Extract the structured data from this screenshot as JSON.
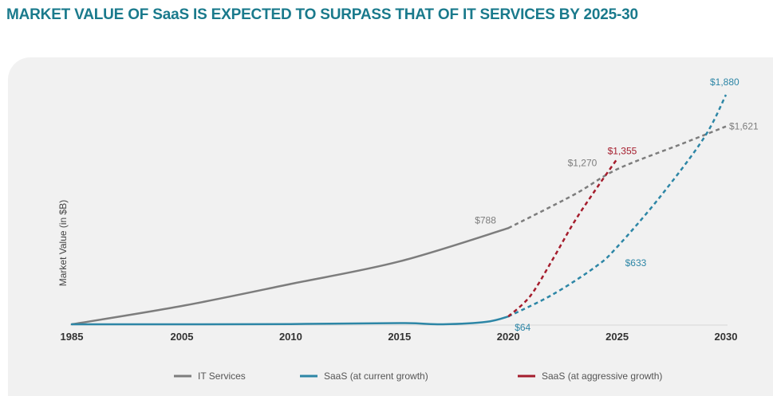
{
  "title": "MARKET VALUE OF SaaS IS EXPECTED TO SURPASS THAT OF IT SERVICES BY 2025-30",
  "colors": {
    "title": "#1a7a8c",
    "it_services": "#7d7d7d",
    "saas_current": "#2d86a6",
    "saas_aggressive": "#a51d2d",
    "panel": "#f1f1f1"
  },
  "chart_data": {
    "type": "line",
    "title": "MARKET VALUE OF SaaS IS EXPECTED TO SURPASS THAT OF IT SERVICES BY 2025-30",
    "xlabel": "",
    "ylabel": "Market Value (in $B)",
    "x_ticks": [
      "1985",
      "2005",
      "2010",
      "2015",
      "2020",
      "2025",
      "2030"
    ],
    "x_tick_values": [
      1985,
      2005,
      2010,
      2015,
      2020,
      2025,
      2030
    ],
    "ylim": [
      0,
      1950
    ],
    "grid": false,
    "legend_position": "bottom",
    "series": [
      {
        "name": "IT Services",
        "color": "#7d7d7d",
        "solid": [
          {
            "x": 1985,
            "y": 0
          },
          {
            "x": 2005,
            "y": 150
          },
          {
            "x": 2010,
            "y": 330
          },
          {
            "x": 2015,
            "y": 515
          },
          {
            "x": 2020,
            "y": 788
          }
        ],
        "projected": [
          {
            "x": 2020,
            "y": 788
          },
          {
            "x": 2023,
            "y": 1060
          },
          {
            "x": 2025,
            "y": 1270
          },
          {
            "x": 2028,
            "y": 1480
          },
          {
            "x": 2030,
            "y": 1621
          }
        ]
      },
      {
        "name": "SaaS (at current growth)",
        "color": "#2d86a6",
        "solid": [
          {
            "x": 1985,
            "y": 0
          },
          {
            "x": 2005,
            "y": 0
          },
          {
            "x": 2010,
            "y": 2
          },
          {
            "x": 2015,
            "y": 10
          },
          {
            "x": 2017,
            "y": 0
          },
          {
            "x": 2019,
            "y": 20
          },
          {
            "x": 2020,
            "y": 64
          }
        ],
        "projected": [
          {
            "x": 2020,
            "y": 64
          },
          {
            "x": 2022,
            "y": 240
          },
          {
            "x": 2024,
            "y": 470
          },
          {
            "x": 2025,
            "y": 633
          },
          {
            "x": 2027,
            "y": 1050
          },
          {
            "x": 2029,
            "y": 1530
          },
          {
            "x": 2030,
            "y": 1880
          }
        ]
      },
      {
        "name": "SaaS (at aggressive growth)",
        "color": "#a51d2d",
        "solid": [],
        "projected": [
          {
            "x": 2020,
            "y": 64
          },
          {
            "x": 2021,
            "y": 230
          },
          {
            "x": 2022,
            "y": 520
          },
          {
            "x": 2023,
            "y": 830
          },
          {
            "x": 2024,
            "y": 1100
          },
          {
            "x": 2025,
            "y": 1355
          }
        ]
      }
    ],
    "annotations": [
      {
        "text": "$788",
        "series": "IT Services",
        "x": 2020,
        "y": 788,
        "color": "#7d7d7d"
      },
      {
        "text": "$1,270",
        "series": "IT Services",
        "x": 2025,
        "y": 1270,
        "color": "#7d7d7d"
      },
      {
        "text": "$1,621",
        "series": "IT Services",
        "x": 2030,
        "y": 1621,
        "color": "#7d7d7d"
      },
      {
        "text": "$64",
        "series": "SaaS (at current growth)",
        "x": 2020,
        "y": 64,
        "color": "#2d86a6"
      },
      {
        "text": "$633",
        "series": "SaaS (at current growth)",
        "x": 2025,
        "y": 633,
        "color": "#2d86a6"
      },
      {
        "text": "$1,880",
        "series": "SaaS (at current growth)",
        "x": 2030,
        "y": 1880,
        "color": "#2d86a6"
      },
      {
        "text": "$1,355",
        "series": "SaaS (at aggressive growth)",
        "x": 2025,
        "y": 1355,
        "color": "#a51d2d"
      }
    ]
  },
  "legend": {
    "items": [
      {
        "label": "IT Services",
        "color": "#7d7d7d"
      },
      {
        "label": "SaaS (at current growth)",
        "color": "#2d86a6"
      },
      {
        "label": "SaaS (at aggressive growth)",
        "color": "#a51d2d"
      }
    ]
  }
}
